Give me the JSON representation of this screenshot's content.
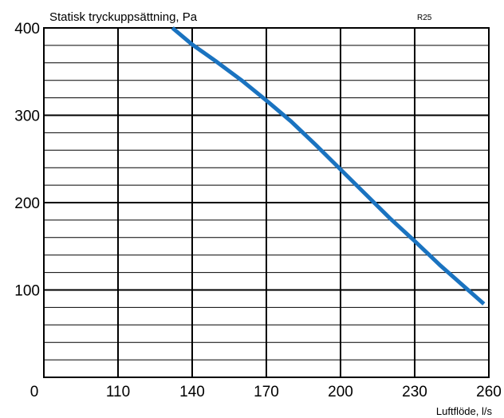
{
  "chart_data": {
    "type": "line",
    "title": "Statisk tryckuppsättning, Pa",
    "tag": "R25",
    "xlabel": "Luftflöde, l/s",
    "ylabel": "",
    "x_ticks": [
      "0",
      "110",
      "140",
      "170",
      "200",
      "230",
      "260"
    ],
    "y_ticks": [
      "100",
      "200",
      "300",
      "400"
    ],
    "xlim": [
      80,
      260
    ],
    "ylim": [
      0,
      400
    ],
    "y_minor_step": 20,
    "grid": true,
    "series": [
      {
        "color": "#1a73c0",
        "x": [
          132,
          140,
          150,
          160,
          170,
          180,
          190,
          200,
          210,
          220,
          230,
          240,
          250,
          258
        ],
        "y": [
          400,
          381,
          361,
          340,
          317,
          293,
          266,
          238,
          210,
          182,
          156,
          129,
          104,
          84
        ]
      }
    ]
  }
}
